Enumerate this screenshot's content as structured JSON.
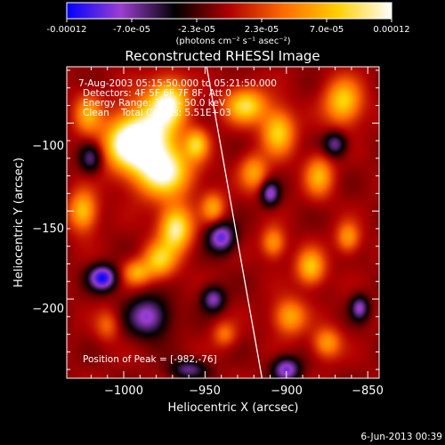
{
  "colorbar": {
    "ticks": [
      "-0.00012",
      "-7.0e-05",
      "-2.3e-05",
      "2.3e-05",
      "7.0e-05",
      "0.00012"
    ],
    "units": "(photons cm⁻² s⁻¹ asec⁻²)",
    "vmin": -0.00012,
    "vmax": 0.00012,
    "stops": [
      "#0000ff",
      "#9b3fd0",
      "#000000",
      "#b00000",
      "#ff6a00",
      "#ffd000",
      "#ffffff"
    ]
  },
  "chart_data": {
    "type": "heatmap",
    "title": "Reconstructed RHESSI Image",
    "xlabel": "Heliocentric X (arcsec)",
    "ylabel": "Heliocentric Y (arcsec)",
    "xlim": [
      -1035,
      -843
    ],
    "ylim": [
      -245,
      -68
    ],
    "xticks": [
      -1000,
      -950,
      -900,
      -850
    ],
    "xtick_labels": [
      "−1000",
      "−950",
      "−900",
      "−850"
    ],
    "yticks": [
      -100,
      -150,
      -200
    ],
    "ytick_labels": [
      "−100",
      "−150",
      "−200"
    ],
    "annotations": [
      "7-Aug-2003 05:15:50.000 to 05:21:50.000",
      "Detectors: 4F 5F 6F 7F 8F, Att 0",
      "Energy Range: 35.0 - 50.0 keV",
      "Clean    Total Counts: 5.51E+03"
    ],
    "peak_text": "Position of Peak = [-982,-76]",
    "limb_line": [
      [
        -949,
        -68
      ],
      [
        -915,
        -245
      ]
    ],
    "blobs": [
      {
        "x": -985,
        "y": -108,
        "sx": 12,
        "sy": 14,
        "a": 1.0
      },
      {
        "x": -972,
        "y": -88,
        "sx": 8,
        "sy": 9,
        "a": 0.9
      },
      {
        "x": -1000,
        "y": -112,
        "sx": 10,
        "sy": 10,
        "a": 0.75
      },
      {
        "x": -975,
        "y": -128,
        "sx": 12,
        "sy": 10,
        "a": 0.9
      },
      {
        "x": -968,
        "y": -160,
        "sx": 7,
        "sy": 9,
        "a": 0.95
      },
      {
        "x": -978,
        "y": -178,
        "sx": 7,
        "sy": 7,
        "a": 0.7
      },
      {
        "x": -992,
        "y": -185,
        "sx": 6,
        "sy": 5,
        "a": 0.55
      },
      {
        "x": -955,
        "y": -112,
        "sx": 5,
        "sy": 6,
        "a": 0.65
      },
      {
        "x": -1022,
        "y": -95,
        "sx": 6,
        "sy": 8,
        "a": 0.55
      },
      {
        "x": -1025,
        "y": -150,
        "sx": 6,
        "sy": 8,
        "a": 0.7
      },
      {
        "x": -945,
        "y": -148,
        "sx": 5,
        "sy": 6,
        "a": 0.55
      },
      {
        "x": -925,
        "y": -90,
        "sx": 9,
        "sy": 7,
        "a": 0.8
      },
      {
        "x": -905,
        "y": -105,
        "sx": 7,
        "sy": 9,
        "a": 0.75
      },
      {
        "x": -920,
        "y": -128,
        "sx": 6,
        "sy": 7,
        "a": 0.55
      },
      {
        "x": -865,
        "y": -88,
        "sx": 8,
        "sy": 9,
        "a": 0.75
      },
      {
        "x": -880,
        "y": -130,
        "sx": 6,
        "sy": 8,
        "a": 0.6
      },
      {
        "x": -862,
        "y": -165,
        "sx": 5,
        "sy": 6,
        "a": 0.55
      },
      {
        "x": -885,
        "y": -182,
        "sx": 6,
        "sy": 7,
        "a": 0.7
      },
      {
        "x": -908,
        "y": -168,
        "sx": 5,
        "sy": 6,
        "a": 0.55
      },
      {
        "x": -898,
        "y": -210,
        "sx": 7,
        "sy": 7,
        "a": 0.6
      },
      {
        "x": -875,
        "y": -225,
        "sx": 6,
        "sy": 6,
        "a": 0.55
      },
      {
        "x": -938,
        "y": -220,
        "sx": 5,
        "sy": 5,
        "a": 0.4
      },
      {
        "x": -1010,
        "y": -215,
        "sx": 5,
        "sy": 6,
        "a": 0.35
      },
      {
        "x": -1013,
        "y": -188,
        "sx": 6,
        "sy": 5,
        "a": -0.9
      },
      {
        "x": -985,
        "y": -210,
        "sx": 9,
        "sy": 8,
        "a": -0.65
      },
      {
        "x": -940,
        "y": -165,
        "sx": 6,
        "sy": 6,
        "a": -0.75
      },
      {
        "x": -1020,
        "y": -120,
        "sx": 5,
        "sy": 6,
        "a": -0.5
      },
      {
        "x": -945,
        "y": -200,
        "sx": 5,
        "sy": 5,
        "a": -0.6
      },
      {
        "x": -910,
        "y": -140,
        "sx": 4,
        "sy": 5,
        "a": -0.65
      },
      {
        "x": -870,
        "y": -112,
        "sx": 5,
        "sy": 5,
        "a": -0.55
      },
      {
        "x": -855,
        "y": -205,
        "sx": 4,
        "sy": 5,
        "a": -0.6
      },
      {
        "x": -900,
        "y": -240,
        "sx": 6,
        "sy": 5,
        "a": -0.7
      },
      {
        "x": -960,
        "y": -240,
        "sx": 8,
        "sy": 4,
        "a": -0.5
      }
    ]
  },
  "footer": {
    "timestamp": "6-Jun-2013 00:39"
  }
}
